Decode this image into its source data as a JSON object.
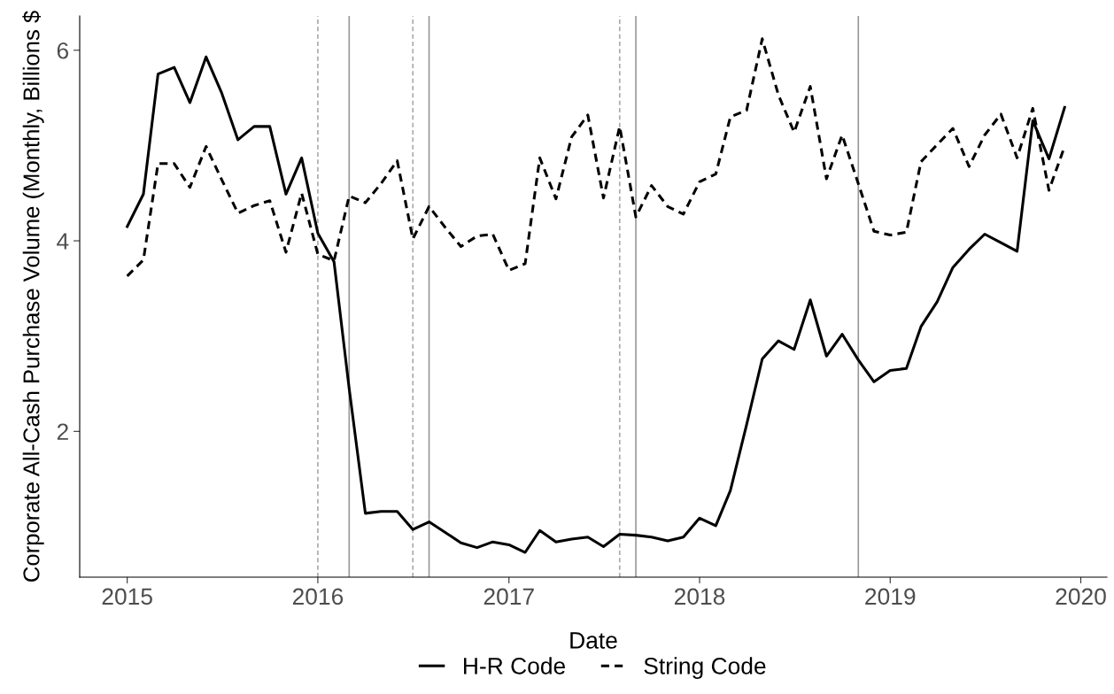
{
  "chart_data": {
    "type": "line",
    "xlabel": "Date",
    "ylabel": "Corporate All-Cash Purchase Volume (Monthly, Billions $",
    "x": [
      "2015-01",
      "2015-02",
      "2015-03",
      "2015-04",
      "2015-05",
      "2015-06",
      "2015-07",
      "2015-08",
      "2015-09",
      "2015-10",
      "2015-11",
      "2015-12",
      "2016-01",
      "2016-02",
      "2016-03",
      "2016-04",
      "2016-05",
      "2016-06",
      "2016-07",
      "2016-08",
      "2016-09",
      "2016-10",
      "2016-11",
      "2016-12",
      "2017-01",
      "2017-02",
      "2017-03",
      "2017-04",
      "2017-05",
      "2017-06",
      "2017-07",
      "2017-08",
      "2017-09",
      "2017-10",
      "2017-11",
      "2017-12",
      "2018-01",
      "2018-02",
      "2018-03",
      "2018-04",
      "2018-05",
      "2018-06",
      "2018-07",
      "2018-08",
      "2018-09",
      "2018-10",
      "2018-11",
      "2018-12",
      "2019-01",
      "2019-02",
      "2019-03",
      "2019-04",
      "2019-05",
      "2019-06",
      "2019-07",
      "2019-08",
      "2019-09",
      "2019-10",
      "2019-11",
      "2019-12"
    ],
    "series": [
      {
        "name": "H-R Code",
        "color": "#000000",
        "line_style": "solid",
        "values": [
          4.15,
          4.49,
          5.75,
          5.82,
          5.45,
          5.93,
          5.55,
          5.06,
          5.2,
          5.2,
          4.49,
          4.87,
          4.08,
          3.78,
          2.45,
          1.14,
          1.16,
          1.16,
          0.97,
          1.05,
          0.94,
          0.83,
          0.78,
          0.84,
          0.81,
          0.73,
          0.96,
          0.84,
          0.87,
          0.89,
          0.79,
          0.92,
          0.91,
          0.89,
          0.85,
          0.89,
          1.09,
          1.01,
          1.38,
          2.07,
          2.76,
          2.95,
          2.86,
          3.38,
          2.79,
          3.02,
          2.75,
          2.52,
          2.64,
          2.66,
          3.1,
          3.36,
          3.72,
          3.91,
          4.07,
          3.98,
          3.89,
          5.26,
          4.86,
          5.4
        ]
      },
      {
        "name": "String Code",
        "color": "#000000",
        "line_style": "dashed",
        "values": [
          3.63,
          3.8,
          4.81,
          4.81,
          4.56,
          4.99,
          4.64,
          4.29,
          4.37,
          4.42,
          3.88,
          4.5,
          3.86,
          3.79,
          4.47,
          4.4,
          4.6,
          4.84,
          4.02,
          4.36,
          4.14,
          3.94,
          4.05,
          4.07,
          3.69,
          3.76,
          4.87,
          4.44,
          5.09,
          5.32,
          4.45,
          5.2,
          4.25,
          4.58,
          4.36,
          4.28,
          4.62,
          4.7,
          5.3,
          5.37,
          6.12,
          5.53,
          5.14,
          5.62,
          4.65,
          5.11,
          4.6,
          4.1,
          4.06,
          4.09,
          4.83,
          5.01,
          5.18,
          4.78,
          5.11,
          5.33,
          4.87,
          5.39,
          4.53,
          4.99
        ]
      }
    ],
    "xlim": [
      "2014-10-02",
      "2020-02-20"
    ],
    "xticks": [
      {
        "value": "2015-01-01",
        "label": "2015"
      },
      {
        "value": "2016-01-01",
        "label": "2016"
      },
      {
        "value": "2017-01-01",
        "label": "2017"
      },
      {
        "value": "2018-01-01",
        "label": "2018"
      },
      {
        "value": "2019-01-01",
        "label": "2019"
      },
      {
        "value": "2020-01-01",
        "label": "2020"
      }
    ],
    "ylim": [
      0.47,
      6.36
    ],
    "yticks": [
      2,
      4,
      6
    ],
    "ref_lines": [
      {
        "axis": "x",
        "value": "2016-01",
        "color": "#aaaaaa",
        "line_style": "dashed"
      },
      {
        "axis": "x",
        "value": "2016-03",
        "color": "#999999",
        "line_style": "solid"
      },
      {
        "axis": "x",
        "value": "2016-07",
        "color": "#aaaaaa",
        "line_style": "dashed"
      },
      {
        "axis": "x",
        "value": "2016-08",
        "color": "#999999",
        "line_style": "solid"
      },
      {
        "axis": "x",
        "value": "2017-08",
        "color": "#aaaaaa",
        "line_style": "dashed"
      },
      {
        "axis": "x",
        "value": "2017-09",
        "color": "#999999",
        "line_style": "solid"
      },
      {
        "axis": "x",
        "value": "2018-11",
        "color": "#999999",
        "line_style": "solid"
      }
    ],
    "grid": false,
    "legend": "bottom"
  }
}
